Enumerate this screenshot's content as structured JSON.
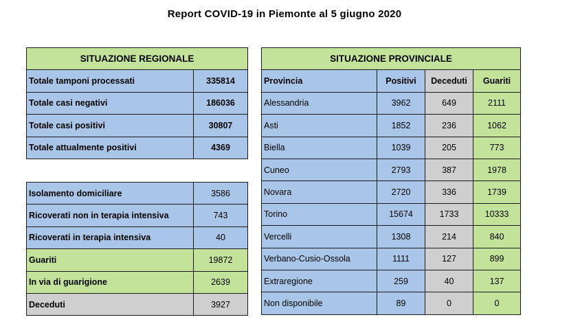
{
  "title": "Report COVID-19 in Piemonte al 5 giugno 2020",
  "regional": {
    "header": "SITUAZIONE REGIONALE",
    "totals": [
      {
        "label": "Totale tamponi processati",
        "value": "335814"
      },
      {
        "label": "Totale casi negativi",
        "value": "186036"
      },
      {
        "label": "Totale casi positivi",
        "value": "30807"
      },
      {
        "label": "Totale attualmente positivi",
        "value": "4369"
      }
    ],
    "details": [
      {
        "label": "Isolamento domiciliare",
        "value": "3586"
      },
      {
        "label": "Ricoverati non in terapia intensiva",
        "value": "743"
      },
      {
        "label": "Ricoverati in terapia intensiva",
        "value": "40"
      },
      {
        "label": "Guariti",
        "value": "19872"
      },
      {
        "label": "In via di guarigione",
        "value": "2639"
      },
      {
        "label": "Deceduti",
        "value": "3927"
      }
    ]
  },
  "provincial": {
    "header": "SITUAZIONE PROVINCIALE",
    "columns": [
      "Provincia",
      "Positivi",
      "Deceduti",
      "Guariti"
    ],
    "rows": [
      [
        "Alessandria",
        "3962",
        "649",
        "2111"
      ],
      [
        "Asti",
        "1852",
        "236",
        "1062"
      ],
      [
        "Biella",
        "1039",
        "205",
        "773"
      ],
      [
        "Cuneo",
        "2793",
        "387",
        "1978"
      ],
      [
        "Novara",
        "2720",
        "336",
        "1739"
      ],
      [
        "Torino",
        "15674",
        "1733",
        "10333"
      ],
      [
        "Vercelli",
        "1308",
        "214",
        "840"
      ],
      [
        "Verbano-Cusio-Ossola",
        "1111",
        "127",
        "899"
      ],
      [
        "Extraregione",
        "259",
        "40",
        "137"
      ],
      [
        "Non disponibile",
        "89",
        "0",
        "0"
      ]
    ]
  },
  "colors": {
    "header_green": "#c4e39a",
    "cell_blue": "#a9c6e8",
    "cell_grey": "#cfcfcf"
  }
}
